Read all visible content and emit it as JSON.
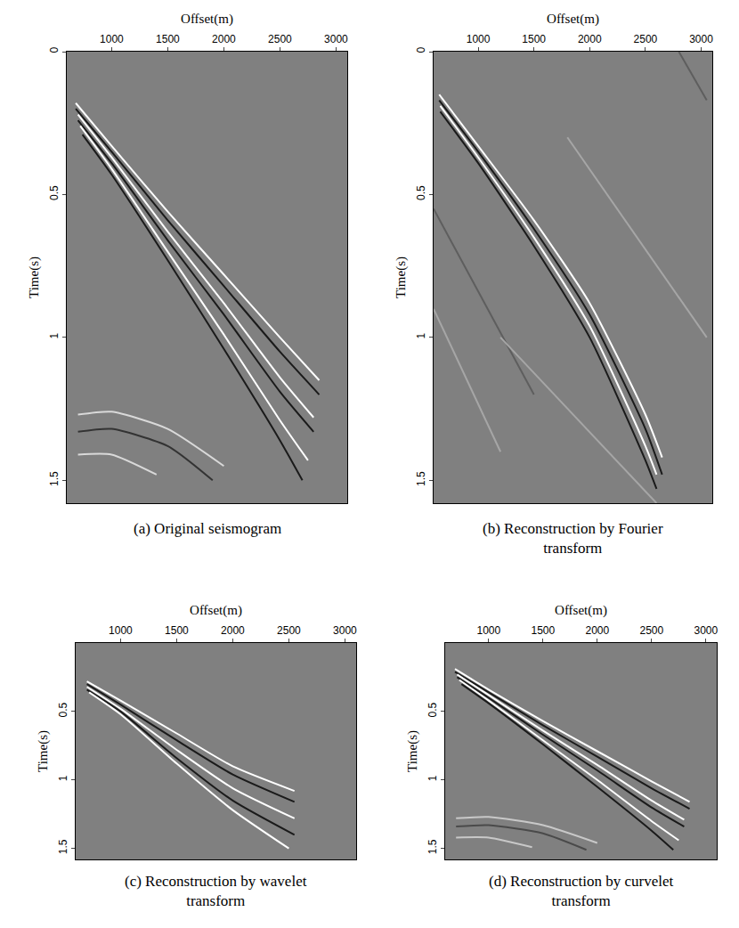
{
  "chart_data": [
    {
      "type": "line",
      "title": "(a) Original seismogram",
      "x_label": "Offset(m)",
      "y_label": "Time(s)",
      "xlim": [
        600,
        3100
      ],
      "xticks": [
        1000,
        1500,
        2000,
        2500,
        3000
      ],
      "ylim": [
        0,
        1.58
      ],
      "yticks": [
        0,
        0.5,
        1,
        1.5
      ],
      "series": [
        {
          "color": "#ffffff",
          "x": [
            680,
            1000,
            1500,
            2000,
            2500,
            2850
          ],
          "values": [
            0.18,
            0.33,
            0.56,
            0.78,
            1.0,
            1.15
          ]
        },
        {
          "color": "#1a1a1a",
          "x": [
            680,
            1000,
            1500,
            2000,
            2500,
            2850
          ],
          "values": [
            0.2,
            0.35,
            0.59,
            0.82,
            1.05,
            1.2
          ]
        },
        {
          "color": "#ffffff",
          "x": [
            700,
            1000,
            1500,
            2000,
            2500,
            2800
          ],
          "values": [
            0.22,
            0.37,
            0.63,
            0.88,
            1.14,
            1.28
          ]
        },
        {
          "color": "#1a1a1a",
          "x": [
            700,
            1000,
            1500,
            2000,
            2500,
            2800
          ],
          "values": [
            0.24,
            0.39,
            0.66,
            0.92,
            1.19,
            1.33
          ]
        },
        {
          "color": "#ffffff",
          "x": [
            720,
            1000,
            1500,
            2000,
            2500,
            2750
          ],
          "values": [
            0.26,
            0.41,
            0.7,
            0.99,
            1.29,
            1.43
          ]
        },
        {
          "color": "#1a1a1a",
          "x": [
            740,
            1000,
            1500,
            2000,
            2500,
            2700
          ],
          "values": [
            0.29,
            0.43,
            0.73,
            1.04,
            1.36,
            1.5
          ]
        },
        {
          "color": "#d9d9d9",
          "x": [
            700,
            1000,
            1500,
            2000
          ],
          "values": [
            1.27,
            1.26,
            1.32,
            1.45
          ]
        },
        {
          "color": "#333333",
          "x": [
            700,
            1000,
            1500,
            1900
          ],
          "values": [
            1.33,
            1.32,
            1.38,
            1.5
          ]
        },
        {
          "color": "#d9d9d9",
          "x": [
            700,
            1000,
            1400
          ],
          "values": [
            1.41,
            1.41,
            1.48
          ]
        }
      ]
    },
    {
      "type": "line",
      "title": "(b) Reconstruction by Fourier transform",
      "x_label": "Offset(m)",
      "y_label": "Time(s)",
      "xlim": [
        600,
        3100
      ],
      "xticks": [
        1000,
        1500,
        2000,
        2500,
        3000
      ],
      "ylim": [
        0,
        1.58
      ],
      "yticks": [
        0,
        0.5,
        1,
        1.5
      ],
      "series": [
        {
          "color": "#5e5e5e",
          "x": [
            2800,
            3050
          ],
          "values": [
            0,
            0.17
          ]
        },
        {
          "color": "#5e5e5e",
          "x": [
            600,
            1500
          ],
          "values": [
            0.55,
            1.2
          ]
        },
        {
          "color": "#a6a6a6",
          "x": [
            1200,
            2600
          ],
          "values": [
            1.0,
            1.58
          ]
        },
        {
          "color": "#a6a6a6",
          "x": [
            600,
            1200
          ],
          "values": [
            0.9,
            1.4
          ]
        },
        {
          "color": "#a6a6a6",
          "x": [
            1800,
            3050
          ],
          "values": [
            0.3,
            1.0
          ]
        },
        {
          "color": "#ffffff",
          "x": [
            650,
            1000,
            1500,
            2000,
            2500,
            2650
          ],
          "values": [
            0.15,
            0.33,
            0.59,
            0.88,
            1.27,
            1.42
          ]
        },
        {
          "color": "#1a1a1a",
          "x": [
            650,
            1000,
            1500,
            2000,
            2500,
            2650
          ],
          "values": [
            0.17,
            0.35,
            0.62,
            0.92,
            1.32,
            1.48
          ]
        },
        {
          "color": "#ffffff",
          "x": [
            660,
            1000,
            1500,
            2000,
            2500,
            2600
          ],
          "values": [
            0.19,
            0.37,
            0.65,
            0.96,
            1.38,
            1.48
          ]
        },
        {
          "color": "#1a1a1a",
          "x": [
            660,
            1000,
            1500,
            2000,
            2500,
            2600
          ],
          "values": [
            0.21,
            0.39,
            0.68,
            1.0,
            1.43,
            1.53
          ]
        }
      ]
    },
    {
      "type": "line",
      "title": "(c) Reconstruction by wavelet transform",
      "x_label": "Offset(m)",
      "y_label": "Time(s)",
      "xlim": [
        600,
        3100
      ],
      "xticks": [
        1000,
        1500,
        2000,
        2500,
        3000
      ],
      "ylim": [
        0,
        1.58
      ],
      "yticks": [
        0.5,
        1,
        1.5
      ],
      "series": [
        {
          "color": "#ffffff",
          "x": [
            700,
            1000,
            1500,
            2000,
            2550
          ],
          "values": [
            0.28,
            0.42,
            0.66,
            0.9,
            1.08
          ]
        },
        {
          "color": "#1a1a1a",
          "x": [
            700,
            1000,
            1500,
            2000,
            2550
          ],
          "values": [
            0.3,
            0.45,
            0.71,
            0.96,
            1.16
          ]
        },
        {
          "color": "#ffffff",
          "x": [
            700,
            1000,
            1500,
            2000,
            2550
          ],
          "values": [
            0.32,
            0.48,
            0.78,
            1.06,
            1.28
          ]
        },
        {
          "color": "#1a1a1a",
          "x": [
            700,
            1000,
            1500,
            2000,
            2550
          ],
          "values": [
            0.34,
            0.5,
            0.84,
            1.15,
            1.4
          ]
        },
        {
          "color": "#ffffff",
          "x": [
            720,
            1000,
            1500,
            2000,
            2500
          ],
          "values": [
            0.36,
            0.52,
            0.88,
            1.22,
            1.5
          ]
        }
      ]
    },
    {
      "type": "line",
      "title": "(d) Reconstruction by curvelet transform",
      "x_label": "Offset(m)",
      "y_label": "Time(s)",
      "xlim": [
        600,
        3100
      ],
      "xticks": [
        1000,
        1500,
        2000,
        2500,
        3000
      ],
      "ylim": [
        0,
        1.58
      ],
      "yticks": [
        0.5,
        1,
        1.5
      ],
      "series": [
        {
          "color": "#ffffff",
          "x": [
            690,
            1000,
            1500,
            2000,
            2500,
            2850
          ],
          "values": [
            0.19,
            0.34,
            0.57,
            0.79,
            1.01,
            1.16
          ]
        },
        {
          "color": "#1a1a1a",
          "x": [
            690,
            1000,
            1500,
            2000,
            2500,
            2850
          ],
          "values": [
            0.21,
            0.36,
            0.6,
            0.83,
            1.06,
            1.21
          ]
        },
        {
          "color": "#ffffff",
          "x": [
            710,
            1000,
            1500,
            2000,
            2500,
            2800
          ],
          "values": [
            0.23,
            0.38,
            0.64,
            0.89,
            1.15,
            1.29
          ]
        },
        {
          "color": "#1a1a1a",
          "x": [
            710,
            1000,
            1500,
            2000,
            2500,
            2800
          ],
          "values": [
            0.25,
            0.4,
            0.67,
            0.93,
            1.2,
            1.34
          ]
        },
        {
          "color": "#ffffff",
          "x": [
            730,
            1000,
            1500,
            2000,
            2500,
            2750
          ],
          "values": [
            0.27,
            0.42,
            0.71,
            1.0,
            1.3,
            1.44
          ]
        },
        {
          "color": "#1a1a1a",
          "x": [
            750,
            1000,
            1500,
            2000,
            2500,
            2700
          ],
          "values": [
            0.3,
            0.44,
            0.74,
            1.05,
            1.37,
            1.51
          ]
        },
        {
          "color": "#c8c8c8",
          "x": [
            700,
            1000,
            1500,
            2000
          ],
          "values": [
            1.28,
            1.27,
            1.33,
            1.46
          ]
        },
        {
          "color": "#4a4a4a",
          "x": [
            700,
            1000,
            1500,
            1900
          ],
          "values": [
            1.34,
            1.33,
            1.39,
            1.51
          ]
        },
        {
          "color": "#c8c8c8",
          "x": [
            700,
            1000,
            1400
          ],
          "values": [
            1.42,
            1.42,
            1.49
          ]
        }
      ]
    }
  ]
}
